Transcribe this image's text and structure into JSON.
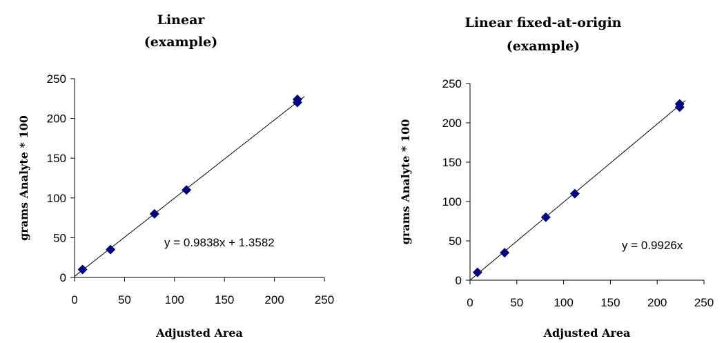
{
  "chart_data": [
    {
      "type": "scatter",
      "title": "Linear",
      "subtitle": "(example)",
      "xlabel": "Adjusted Area",
      "ylabel": "grams Analyte * 100",
      "xlim": [
        0,
        250
      ],
      "ylim": [
        0,
        250
      ],
      "xticks": [
        "0",
        "50",
        "100",
        "150",
        "200",
        "250"
      ],
      "yticks": [
        "0",
        "50",
        "100",
        "150",
        "200",
        "250"
      ],
      "grid": false,
      "series": [
        {
          "x": [
            8,
            36,
            80,
            112,
            223,
            223
          ],
          "y": [
            10,
            35,
            80,
            110,
            220,
            224
          ],
          "color": "#00007f"
        }
      ],
      "trendline": {
        "slope": 0.9838,
        "intercept": 1.3582,
        "x_range": [
          0,
          230
        ],
        "color": "#000000"
      },
      "equation": "y = 0.9838x + 1.3582"
    },
    {
      "type": "scatter",
      "title": "Linear fixed-at-origin",
      "subtitle": "(example)",
      "xlabel": "Adjusted Area",
      "ylabel": "grams Analyte * 100",
      "xlim": [
        0,
        250
      ],
      "ylim": [
        0,
        250
      ],
      "xticks": [
        "0",
        "50",
        "100",
        "150",
        "200",
        "250"
      ],
      "yticks": [
        "0",
        "50",
        "100",
        "150",
        "200",
        "250"
      ],
      "grid": false,
      "series": [
        {
          "x": [
            8,
            37,
            81,
            112,
            224,
            224
          ],
          "y": [
            10,
            35,
            80,
            110,
            220,
            224
          ],
          "color": "#00007f"
        }
      ],
      "trendline": {
        "slope": 0.9926,
        "intercept": 0,
        "x_range": [
          0,
          230
        ],
        "color": "#000000"
      },
      "equation": "y = 0.9926x"
    }
  ]
}
